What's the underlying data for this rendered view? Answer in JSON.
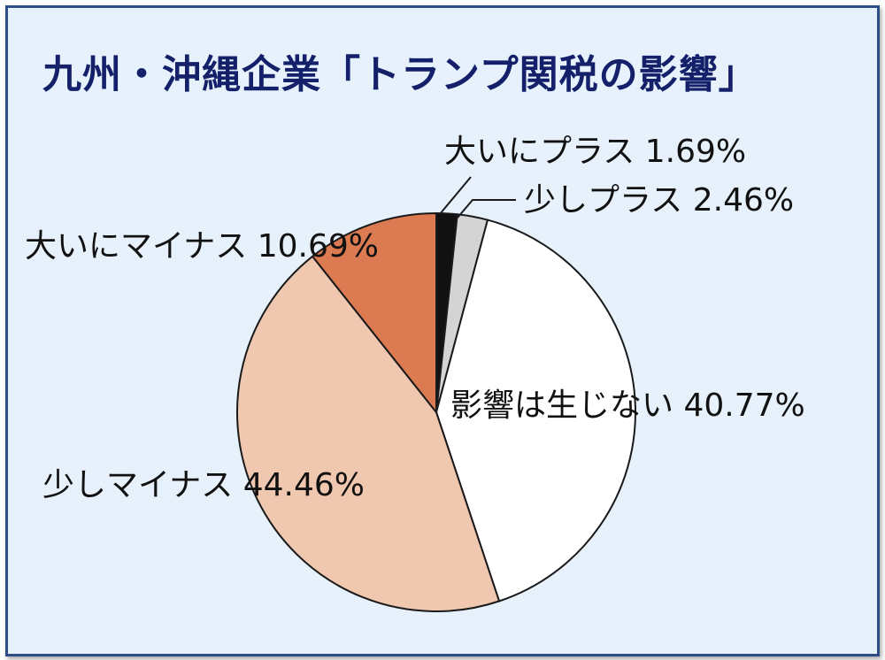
{
  "chart_data": {
    "type": "pie",
    "title": "九州・沖縄企業「トランプ関税の影響」",
    "slices": [
      {
        "label": "大いにプラス",
        "value": 1.69,
        "display": "大いにプラス 1.69%",
        "color": "#111111"
      },
      {
        "label": "少しプラス",
        "value": 2.46,
        "display": "少しプラス 2.46%",
        "color": "#d4d4d4"
      },
      {
        "label": "影響は生じない",
        "value": 40.77,
        "display": "影響は生じない 40.77%",
        "color": "#ffffff"
      },
      {
        "label": "少しマイナス",
        "value": 44.46,
        "display": "少しマイナス 44.46%",
        "color": "#f0c8b0"
      },
      {
        "label": "大いにマイナス",
        "value": 10.69,
        "display": "大いにマイナス 10.69%",
        "color": "#dc7a52"
      }
    ],
    "start_angle": "top",
    "direction": "clockwise",
    "legend": "none"
  }
}
